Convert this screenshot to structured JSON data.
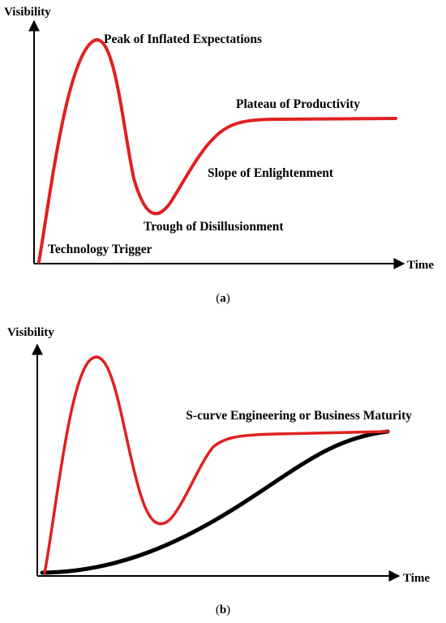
{
  "panel_a": {
    "y_axis_label": "Visibility",
    "x_axis_label": "Time",
    "phases": {
      "technology_trigger": "Technology Trigger",
      "peak": "Peak of Inflated Expectations",
      "trough": "Trough of Disillusionment",
      "slope": "Slope of Enlightenment",
      "plateau": "Plateau of Productivity"
    },
    "caption_open": "(",
    "caption_letter": "a",
    "caption_close": ")",
    "curve_color": "#e02020"
  },
  "panel_b": {
    "y_axis_label": "Visibility",
    "x_axis_label": "Time",
    "s_curve_label": "S-curve Engineering or Business Maturity",
    "caption_open": "(",
    "caption_letter": "b",
    "caption_close": ")",
    "hype_curve_color": "#e02020",
    "s_curve_color": "#000000"
  }
}
